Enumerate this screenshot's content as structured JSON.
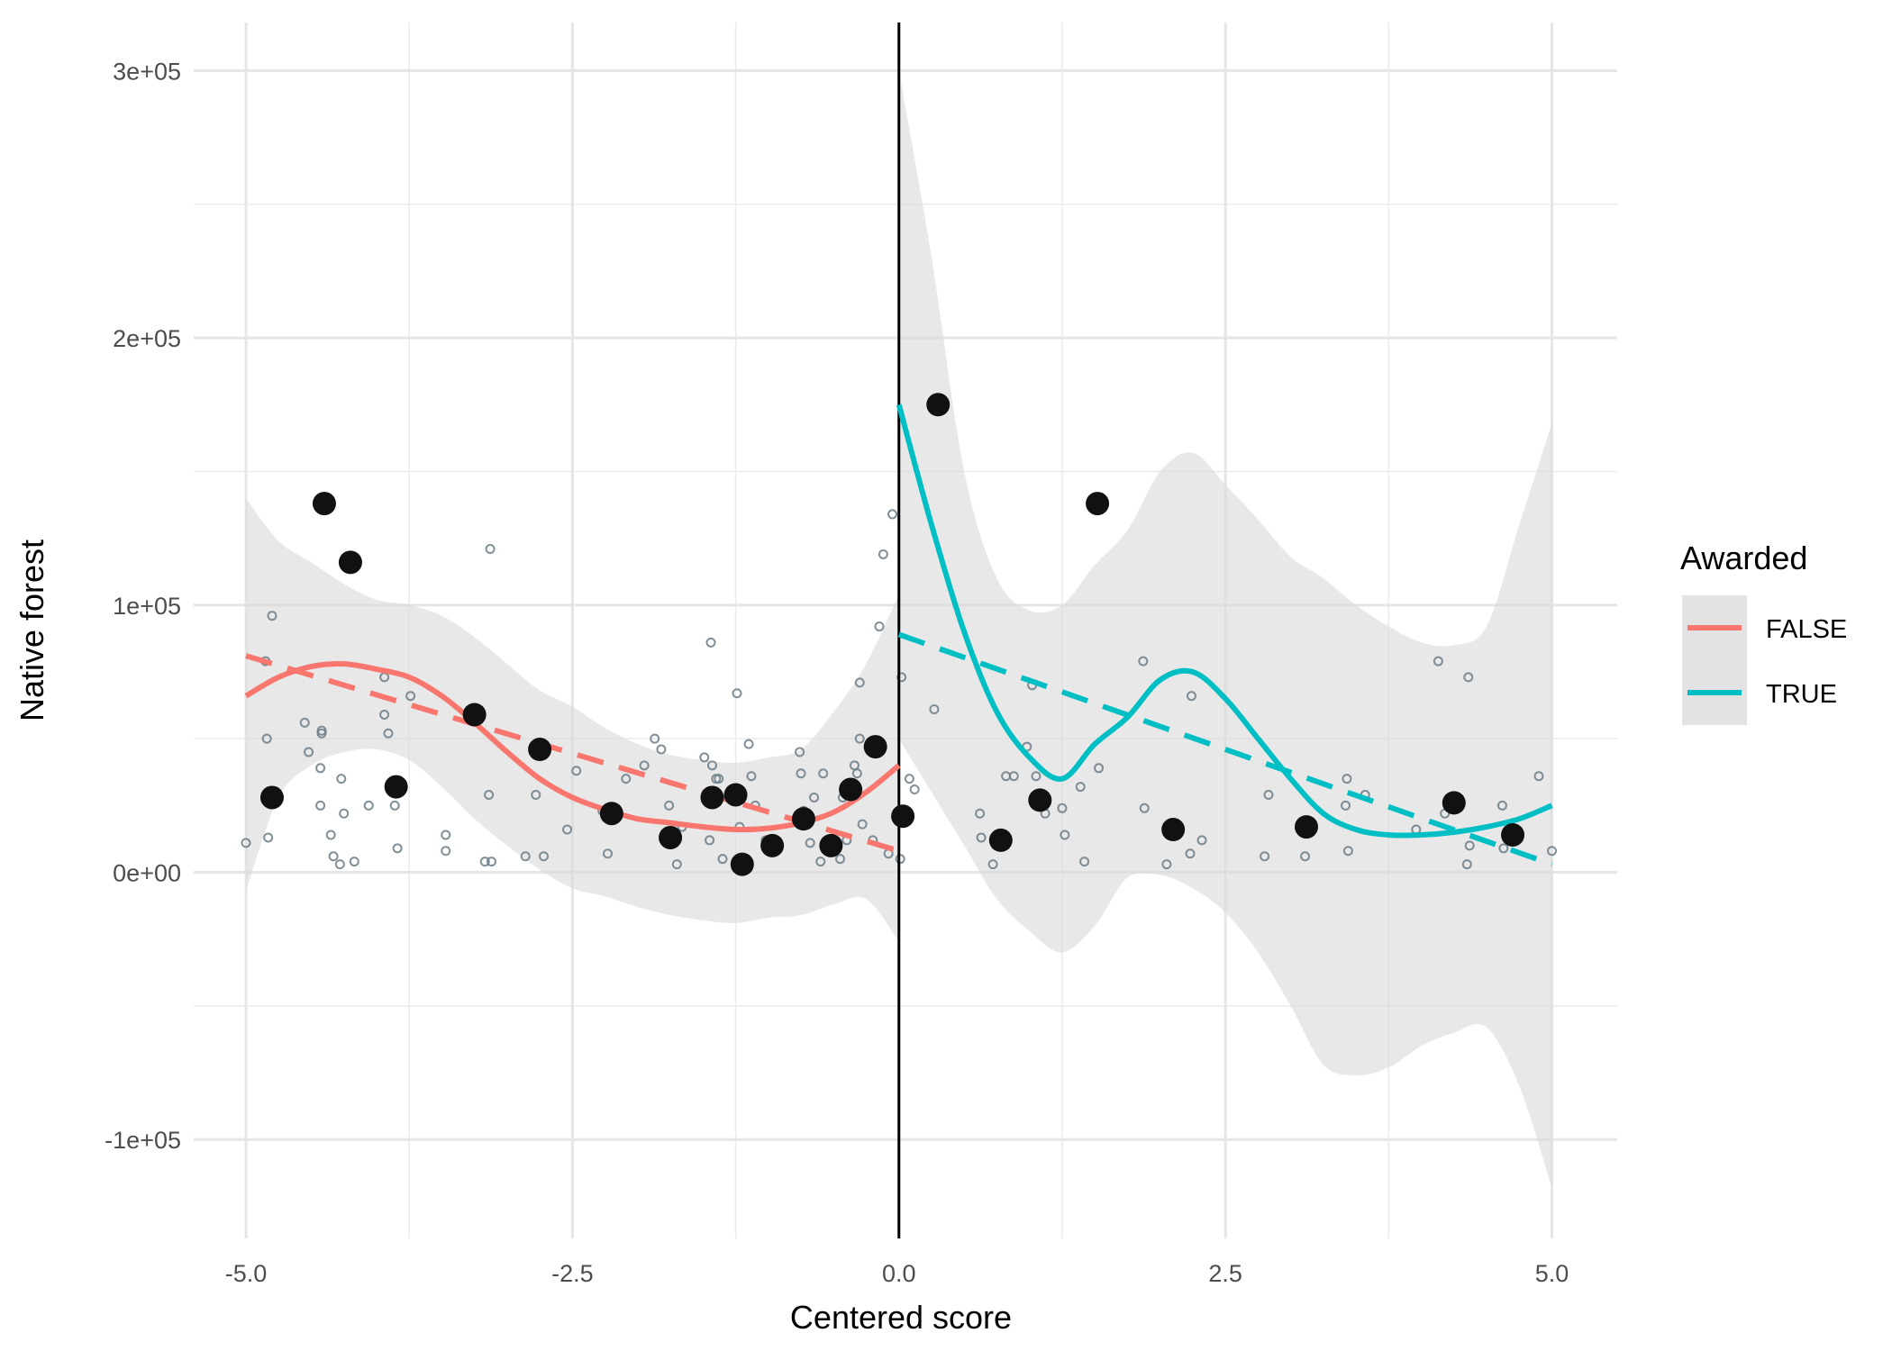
{
  "chart_data": {
    "type": "scatter",
    "xlabel": "Centered score",
    "ylabel": "Native forest",
    "xlim": [
      -5.4,
      5.5
    ],
    "ylim": [
      -137000,
      318000
    ],
    "x_ticks": [
      {
        "value": -5,
        "label": "-5.0"
      },
      {
        "value": -2.5,
        "label": "-2.5"
      },
      {
        "value": 0,
        "label": "0.0"
      },
      {
        "value": 2.5,
        "label": "2.5"
      },
      {
        "value": 5,
        "label": "5.0"
      }
    ],
    "y_ticks": [
      {
        "value": -100000,
        "label": "-1e+05"
      },
      {
        "value": 0,
        "label": "0e+00"
      },
      {
        "value": 100000,
        "label": "1e+05"
      },
      {
        "value": 200000,
        "label": "2e+05"
      },
      {
        "value": 300000,
        "label": "3e+05"
      }
    ],
    "grid": true,
    "cutoff_x": 0,
    "legend": {
      "title": "Awarded",
      "position": "right",
      "entries": [
        {
          "label": "FALSE",
          "color": "#F8766D"
        },
        {
          "label": "TRUE",
          "color": "#00BFC4"
        }
      ]
    },
    "colors": {
      "false": "#F8766D",
      "true": "#00BFC4",
      "band": "#d9d9d9",
      "raw_points": "#6b7b86",
      "binned_points": "#111111"
    },
    "raw_points": [
      [
        -5.0,
        11000
      ],
      [
        -4.85,
        79000
      ],
      [
        -4.84,
        50000
      ],
      [
        -4.83,
        13000
      ],
      [
        -4.8,
        96000
      ],
      [
        -4.55,
        56000
      ],
      [
        -4.52,
        45000
      ],
      [
        -4.42,
        53000
      ],
      [
        -4.42,
        52000
      ],
      [
        -4.43,
        39000
      ],
      [
        -4.43,
        25000
      ],
      [
        -4.35,
        14000
      ],
      [
        -4.33,
        6000
      ],
      [
        -4.28,
        3000
      ],
      [
        -4.27,
        35000
      ],
      [
        -4.25,
        22000
      ],
      [
        -4.17,
        4000
      ],
      [
        -4.06,
        25000
      ],
      [
        -3.94,
        73000
      ],
      [
        -3.94,
        59000
      ],
      [
        -3.91,
        52000
      ],
      [
        -3.86,
        25000
      ],
      [
        -3.84,
        9000
      ],
      [
        -3.74,
        66000
      ],
      [
        -3.47,
        14000
      ],
      [
        -3.47,
        8000
      ],
      [
        -3.22,
        59000
      ],
      [
        -3.17,
        4000
      ],
      [
        -3.14,
        29000
      ],
      [
        -3.13,
        121000
      ],
      [
        -3.12,
        4000
      ],
      [
        -2.86,
        6000
      ],
      [
        -2.78,
        29000
      ],
      [
        -2.72,
        6000
      ],
      [
        -2.54,
        16000
      ],
      [
        -2.47,
        38000
      ],
      [
        -2.27,
        23000
      ],
      [
        -2.23,
        7000
      ],
      [
        -2.09,
        35000
      ],
      [
        -1.95,
        40000
      ],
      [
        -1.87,
        50000
      ],
      [
        -1.82,
        46000
      ],
      [
        -1.76,
        25000
      ],
      [
        -1.7,
        3000
      ],
      [
        -1.66,
        17000
      ],
      [
        -1.49,
        43000
      ],
      [
        -1.45,
        12000
      ],
      [
        -1.44,
        86000
      ],
      [
        -1.43,
        40000
      ],
      [
        -1.4,
        35000
      ],
      [
        -1.38,
        35000
      ],
      [
        -1.35,
        5000
      ],
      [
        -1.24,
        67000
      ],
      [
        -1.22,
        17000
      ],
      [
        -1.15,
        48000
      ],
      [
        -1.13,
        36000
      ],
      [
        -1.1,
        25000
      ],
      [
        -1.02,
        12000
      ],
      [
        -1.0,
        8000
      ],
      [
        -0.76,
        45000
      ],
      [
        -0.75,
        37000
      ],
      [
        -0.73,
        23000
      ],
      [
        -0.68,
        11000
      ],
      [
        -0.65,
        28000
      ],
      [
        -0.6,
        4000
      ],
      [
        -0.58,
        37000
      ],
      [
        -0.45,
        5000
      ],
      [
        -0.43,
        28000
      ],
      [
        -0.4,
        12000
      ],
      [
        -0.38,
        32000
      ],
      [
        -0.34,
        40000
      ],
      [
        -0.32,
        37000
      ],
      [
        -0.3,
        50000
      ],
      [
        -0.3,
        71000
      ],
      [
        -0.28,
        18000
      ],
      [
        -0.2,
        12000
      ],
      [
        -0.15,
        92000
      ],
      [
        -0.12,
        119000
      ],
      [
        -0.08,
        7000
      ],
      [
        -0.05,
        134000
      ],
      [
        0.01,
        22000
      ],
      [
        0.01,
        5000
      ],
      [
        0.02,
        73000
      ],
      [
        0.08,
        35000
      ],
      [
        0.12,
        31000
      ],
      [
        0.27,
        61000
      ],
      [
        0.62,
        22000
      ],
      [
        0.63,
        13000
      ],
      [
        0.72,
        3000
      ],
      [
        0.82,
        36000
      ],
      [
        0.88,
        36000
      ],
      [
        0.98,
        47000
      ],
      [
        1.02,
        70000
      ],
      [
        1.05,
        36000
      ],
      [
        1.12,
        22000
      ],
      [
        1.25,
        24000
      ],
      [
        1.27,
        14000
      ],
      [
        1.39,
        32000
      ],
      [
        1.42,
        4000
      ],
      [
        1.53,
        39000
      ],
      [
        1.87,
        79000
      ],
      [
        1.88,
        24000
      ],
      [
        2.05,
        3000
      ],
      [
        2.23,
        7000
      ],
      [
        2.24,
        66000
      ],
      [
        2.32,
        12000
      ],
      [
        2.8,
        6000
      ],
      [
        2.83,
        29000
      ],
      [
        3.11,
        6000
      ],
      [
        3.42,
        25000
      ],
      [
        3.43,
        35000
      ],
      [
        3.44,
        8000
      ],
      [
        3.57,
        29000
      ],
      [
        3.96,
        16000
      ],
      [
        4.13,
        79000
      ],
      [
        4.18,
        22000
      ],
      [
        4.35,
        3000
      ],
      [
        4.36,
        73000
      ],
      [
        4.37,
        10000
      ],
      [
        4.62,
        25000
      ],
      [
        4.63,
        9000
      ],
      [
        4.9,
        36000
      ],
      [
        5.0,
        8000
      ]
    ],
    "binned_points": [
      [
        -4.8,
        28000
      ],
      [
        -4.4,
        138000
      ],
      [
        -4.2,
        116000
      ],
      [
        -3.85,
        32000
      ],
      [
        -3.25,
        59000
      ],
      [
        -2.75,
        46000
      ],
      [
        -2.2,
        22000
      ],
      [
        -1.75,
        13000
      ],
      [
        -1.43,
        28000
      ],
      [
        -1.25,
        29000
      ],
      [
        -1.2,
        3000
      ],
      [
        -0.97,
        10000
      ],
      [
        -0.73,
        20000
      ],
      [
        -0.52,
        10000
      ],
      [
        -0.37,
        31000
      ],
      [
        -0.18,
        47000
      ],
      [
        0.03,
        21000
      ],
      [
        0.3,
        175000
      ],
      [
        0.78,
        12000
      ],
      [
        1.08,
        27000
      ],
      [
        1.52,
        138000
      ],
      [
        2.1,
        16000
      ],
      [
        3.12,
        17000
      ],
      [
        4.25,
        26000
      ],
      [
        4.7,
        14000
      ]
    ],
    "series": [
      {
        "name": "FALSE",
        "kind": "loess",
        "color": "#F8766D",
        "x": [
          -5.0,
          -4.75,
          -4.5,
          -4.25,
          -4.0,
          -3.75,
          -3.5,
          -3.25,
          -3.0,
          -2.75,
          -2.5,
          -2.25,
          -2.0,
          -1.75,
          -1.5,
          -1.25,
          -1.0,
          -0.75,
          -0.5,
          -0.25,
          0.0
        ],
        "y": [
          66000,
          73000,
          77000,
          78000,
          76000,
          73000,
          66000,
          56000,
          45000,
          35000,
          28000,
          23500,
          20000,
          18500,
          17000,
          16000,
          16500,
          18500,
          22500,
          30000,
          40000
        ],
        "band_upper": [
          140000,
          124000,
          116000,
          108000,
          102000,
          100000,
          96000,
          88000,
          78000,
          68000,
          62000,
          54000,
          48000,
          44000,
          42000,
          41000,
          43000,
          46000,
          60000,
          78000,
          104000
        ],
        "band_lower": [
          -7000,
          28000,
          40000,
          45000,
          46000,
          42000,
          32000,
          20000,
          10000,
          1000,
          -6000,
          -9000,
          -13000,
          -16000,
          -18000,
          -19000,
          -17000,
          -16000,
          -12000,
          -10000,
          -26000
        ]
      },
      {
        "name": "FALSE",
        "kind": "linear",
        "color": "#F8766D",
        "x": [
          -5.0,
          0.0
        ],
        "y": [
          81000,
          8000
        ]
      },
      {
        "name": "TRUE",
        "kind": "loess",
        "color": "#00BFC4",
        "x": [
          0.0,
          0.25,
          0.5,
          0.75,
          1.0,
          1.25,
          1.5,
          1.75,
          2.0,
          2.25,
          2.5,
          2.75,
          3.0,
          3.25,
          3.5,
          3.75,
          4.0,
          4.25,
          4.5,
          4.75,
          5.0
        ],
        "y": [
          175000,
          130000,
          90000,
          60000,
          43000,
          35000,
          48000,
          58000,
          72000,
          75000,
          65000,
          50000,
          35000,
          22000,
          16000,
          14000,
          14000,
          15000,
          17000,
          20000,
          25000
        ],
        "band_upper": [
          300000,
          230000,
          150000,
          110000,
          98000,
          100000,
          115000,
          128000,
          150000,
          157000,
          145000,
          132000,
          118000,
          110000,
          100000,
          92000,
          86000,
          85000,
          92000,
          130000,
          168000
        ],
        "band_lower": [
          50000,
          30000,
          10000,
          -10000,
          -22000,
          -30000,
          -20000,
          -2000,
          -1000,
          -6000,
          -15000,
          -30000,
          -50000,
          -72000,
          -76000,
          -73000,
          -65000,
          -60000,
          -58000,
          -80000,
          -118000
        ]
      },
      {
        "name": "TRUE",
        "kind": "linear",
        "color": "#00BFC4",
        "x": [
          0.0,
          5.0
        ],
        "y": [
          89000,
          3000
        ]
      }
    ]
  }
}
